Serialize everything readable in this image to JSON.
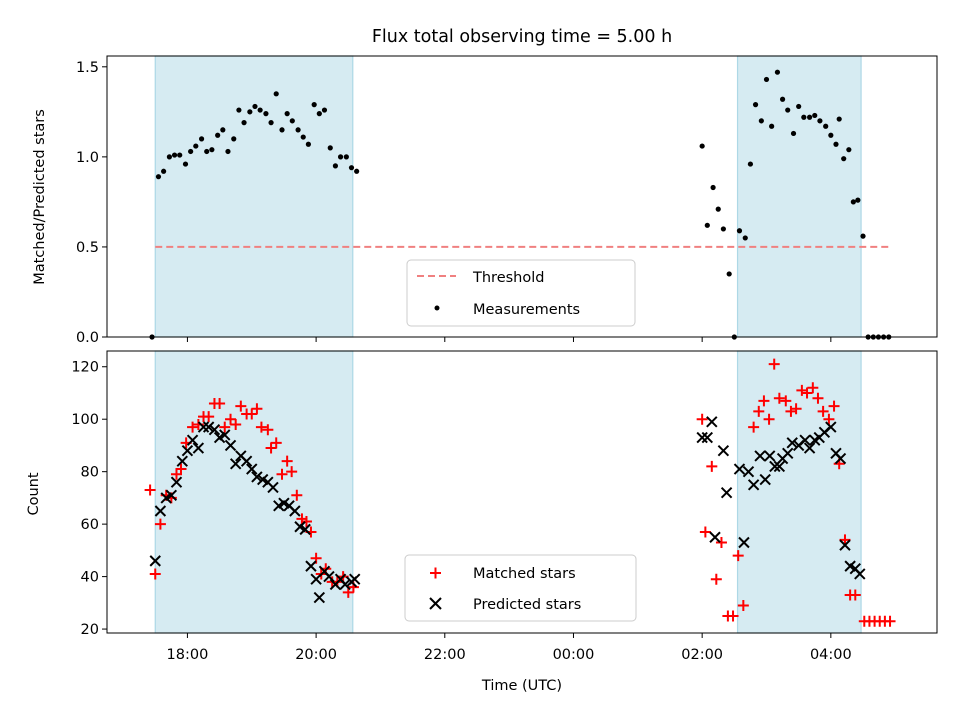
{
  "figure": {
    "title": "Flux total observing time = 5.00 h",
    "xlabel": "Time (UTC)"
  },
  "chart_data": [
    {
      "type": "scatter",
      "panel": "top",
      "ylabel": "Matched/Predicted stars",
      "xlim": [
        16.75,
        29.65
      ],
      "ylim": [
        0.0,
        1.56
      ],
      "y_ticks": [
        "0.0",
        "0.5",
        "1.0",
        "1.5"
      ],
      "y_tick_values": [
        0,
        0.5,
        1.0,
        1.5
      ],
      "x_tick_values": [
        18,
        20,
        22,
        24,
        26,
        28
      ],
      "x_tick_labels_shown": false,
      "legend": [
        "Threshold",
        "Measurements"
      ],
      "legend_position": "lower center",
      "shaded_intervals": [
        [
          17.5,
          20.57
        ],
        [
          26.55,
          28.47
        ]
      ],
      "threshold": {
        "name": "Threshold",
        "value": 0.5,
        "x_range": [
          17.5,
          28.95
        ],
        "color": "#f08080",
        "style": "dashed"
      },
      "series": [
        {
          "name": "Measurements",
          "color": "#000000",
          "marker": "dot",
          "points": [
            [
              17.45,
              0.0
            ],
            [
              17.55,
              0.89
            ],
            [
              17.63,
              0.92
            ],
            [
              17.72,
              1.0
            ],
            [
              17.8,
              1.01
            ],
            [
              17.88,
              1.01
            ],
            [
              17.97,
              0.96
            ],
            [
              18.05,
              1.03
            ],
            [
              18.13,
              1.06
            ],
            [
              18.22,
              1.1
            ],
            [
              18.3,
              1.03
            ],
            [
              18.38,
              1.04
            ],
            [
              18.47,
              1.12
            ],
            [
              18.55,
              1.15
            ],
            [
              18.63,
              1.03
            ],
            [
              18.72,
              1.1
            ],
            [
              18.8,
              1.26
            ],
            [
              18.88,
              1.19
            ],
            [
              18.97,
              1.25
            ],
            [
              19.05,
              1.28
            ],
            [
              19.13,
              1.26
            ],
            [
              19.22,
              1.24
            ],
            [
              19.3,
              1.19
            ],
            [
              19.38,
              1.35
            ],
            [
              19.47,
              1.15
            ],
            [
              19.55,
              1.24
            ],
            [
              19.63,
              1.2
            ],
            [
              19.72,
              1.15
            ],
            [
              19.8,
              1.11
            ],
            [
              19.88,
              1.07
            ],
            [
              19.97,
              1.29
            ],
            [
              20.05,
              1.24
            ],
            [
              20.13,
              1.26
            ],
            [
              20.22,
              1.05
            ],
            [
              20.3,
              0.95
            ],
            [
              20.38,
              1.0
            ],
            [
              20.47,
              1.0
            ],
            [
              20.55,
              0.94
            ],
            [
              20.63,
              0.92
            ],
            [
              26.0,
              1.06
            ],
            [
              26.08,
              0.62
            ],
            [
              26.17,
              0.83
            ],
            [
              26.25,
              0.71
            ],
            [
              26.33,
              0.6
            ],
            [
              26.42,
              0.35
            ],
            [
              26.5,
              0.0
            ],
            [
              26.58,
              0.59
            ],
            [
              26.67,
              0.55
            ],
            [
              26.75,
              0.96
            ],
            [
              26.83,
              1.29
            ],
            [
              26.92,
              1.2
            ],
            [
              27.0,
              1.43
            ],
            [
              27.08,
              1.17
            ],
            [
              27.17,
              1.47
            ],
            [
              27.25,
              1.32
            ],
            [
              27.33,
              1.26
            ],
            [
              27.42,
              1.13
            ],
            [
              27.5,
              1.28
            ],
            [
              27.58,
              1.22
            ],
            [
              27.67,
              1.22
            ],
            [
              27.75,
              1.23
            ],
            [
              27.83,
              1.2
            ],
            [
              27.92,
              1.17
            ],
            [
              28.0,
              1.12
            ],
            [
              28.08,
              1.07
            ],
            [
              28.13,
              1.21
            ],
            [
              28.2,
              0.99
            ],
            [
              28.28,
              1.04
            ],
            [
              28.35,
              0.75
            ],
            [
              28.42,
              0.76
            ],
            [
              28.5,
              0.56
            ],
            [
              28.58,
              0.0
            ],
            [
              28.66,
              0.0
            ],
            [
              28.74,
              0.0
            ],
            [
              28.82,
              0.0
            ],
            [
              28.9,
              0.0
            ]
          ]
        }
      ]
    },
    {
      "type": "scatter",
      "panel": "bottom",
      "xlabel": "Time (UTC)",
      "ylabel": "Count",
      "xlim": [
        16.75,
        29.65
      ],
      "ylim": [
        18.5,
        126
      ],
      "y_ticks": [
        "20",
        "40",
        "60",
        "80",
        "100",
        "120"
      ],
      "y_tick_values": [
        20,
        40,
        60,
        80,
        100,
        120
      ],
      "x_ticks": [
        "18:00",
        "20:00",
        "22:00",
        "00:00",
        "02:00",
        "04:00"
      ],
      "x_tick_values": [
        18,
        20,
        22,
        24,
        26,
        28
      ],
      "legend": [
        "Matched stars",
        "Predicted stars"
      ],
      "legend_position": "lower center",
      "shaded_intervals": [
        [
          17.5,
          20.57
        ],
        [
          26.55,
          28.47
        ]
      ],
      "series": [
        {
          "name": "Matched stars",
          "color": "#ff0000",
          "marker": "plus",
          "points": [
            [
              17.42,
              73
            ],
            [
              17.5,
              41
            ],
            [
              17.58,
              60
            ],
            [
              17.67,
              71
            ],
            [
              17.75,
              70
            ],
            [
              17.83,
              79
            ],
            [
              17.9,
              81
            ],
            [
              17.98,
              91
            ],
            [
              18.08,
              97
            ],
            [
              18.17,
              98
            ],
            [
              18.25,
              101
            ],
            [
              18.33,
              101
            ],
            [
              18.42,
              106
            ],
            [
              18.5,
              106
            ],
            [
              18.58,
              97
            ],
            [
              18.67,
              100
            ],
            [
              18.75,
              98
            ],
            [
              18.83,
              105
            ],
            [
              18.92,
              102
            ],
            [
              19.0,
              102
            ],
            [
              19.08,
              104
            ],
            [
              19.15,
              97
            ],
            [
              19.25,
              96
            ],
            [
              19.3,
              89
            ],
            [
              19.38,
              91
            ],
            [
              19.47,
              79
            ],
            [
              19.55,
              84
            ],
            [
              19.62,
              80
            ],
            [
              19.7,
              71
            ],
            [
              19.78,
              62
            ],
            [
              19.85,
              61
            ],
            [
              19.92,
              57
            ],
            [
              20.0,
              47
            ],
            [
              20.08,
              41
            ],
            [
              20.15,
              43
            ],
            [
              20.25,
              38
            ],
            [
              20.33,
              38
            ],
            [
              20.42,
              40
            ],
            [
              20.5,
              34
            ],
            [
              20.58,
              36
            ],
            [
              26.0,
              100
            ],
            [
              26.05,
              57
            ],
            [
              26.15,
              82
            ],
            [
              26.22,
              39
            ],
            [
              26.3,
              53
            ],
            [
              26.4,
              25
            ],
            [
              26.48,
              25
            ],
            [
              26.56,
              48
            ],
            [
              26.64,
              29
            ],
            [
              26.8,
              97
            ],
            [
              26.88,
              103
            ],
            [
              26.96,
              107
            ],
            [
              27.04,
              100
            ],
            [
              27.12,
              121
            ],
            [
              27.2,
              108
            ],
            [
              27.3,
              107
            ],
            [
              27.38,
              103
            ],
            [
              27.46,
              104
            ],
            [
              27.55,
              111
            ],
            [
              27.63,
              110
            ],
            [
              27.72,
              112
            ],
            [
              27.8,
              108
            ],
            [
              27.88,
              103
            ],
            [
              27.97,
              100
            ],
            [
              28.05,
              105
            ],
            [
              28.13,
              83
            ],
            [
              28.22,
              54
            ],
            [
              28.3,
              33
            ],
            [
              28.38,
              33
            ],
            [
              28.52,
              23
            ],
            [
              28.6,
              23
            ],
            [
              28.68,
              23
            ],
            [
              28.76,
              23
            ],
            [
              28.84,
              23
            ],
            [
              28.92,
              23
            ]
          ]
        },
        {
          "name": "Predicted stars",
          "color": "#000000",
          "marker": "x",
          "points": [
            [
              17.5,
              46
            ],
            [
              17.58,
              65
            ],
            [
              17.67,
              70
            ],
            [
              17.75,
              71
            ],
            [
              17.83,
              76
            ],
            [
              17.92,
              84
            ],
            [
              18.0,
              88
            ],
            [
              18.08,
              92
            ],
            [
              18.17,
              89
            ],
            [
              18.25,
              97
            ],
            [
              18.33,
              97
            ],
            [
              18.42,
              96
            ],
            [
              18.5,
              93
            ],
            [
              18.58,
              94
            ],
            [
              18.67,
              90
            ],
            [
              18.75,
              83
            ],
            [
              18.83,
              86
            ],
            [
              18.92,
              84
            ],
            [
              19.0,
              81
            ],
            [
              19.08,
              78
            ],
            [
              19.17,
              77
            ],
            [
              19.25,
              76
            ],
            [
              19.33,
              74
            ],
            [
              19.42,
              67
            ],
            [
              19.5,
              68
            ],
            [
              19.58,
              67
            ],
            [
              19.67,
              65
            ],
            [
              19.75,
              59
            ],
            [
              19.83,
              58
            ],
            [
              19.92,
              44
            ],
            [
              20.0,
              39
            ],
            [
              20.05,
              32
            ],
            [
              20.13,
              42
            ],
            [
              20.2,
              40
            ],
            [
              20.3,
              37
            ],
            [
              20.38,
              39
            ],
            [
              20.45,
              37
            ],
            [
              20.55,
              38
            ],
            [
              20.6,
              39
            ],
            [
              26.0,
              93
            ],
            [
              26.08,
              93
            ],
            [
              26.15,
              99
            ],
            [
              26.2,
              55
            ],
            [
              26.33,
              88
            ],
            [
              26.38,
              72
            ],
            [
              26.58,
              81
            ],
            [
              26.65,
              53
            ],
            [
              26.72,
              80
            ],
            [
              26.8,
              75
            ],
            [
              26.9,
              86
            ],
            [
              26.98,
              77
            ],
            [
              27.05,
              86
            ],
            [
              27.13,
              82
            ],
            [
              27.2,
              82
            ],
            [
              27.25,
              85
            ],
            [
              27.33,
              87
            ],
            [
              27.4,
              91
            ],
            [
              27.5,
              90
            ],
            [
              27.6,
              92
            ],
            [
              27.67,
              89
            ],
            [
              27.75,
              92
            ],
            [
              27.82,
              93
            ],
            [
              27.9,
              95
            ],
            [
              28.0,
              97
            ],
            [
              28.08,
              87
            ],
            [
              28.15,
              85
            ],
            [
              28.22,
              52
            ],
            [
              28.3,
              44
            ],
            [
              28.38,
              43
            ],
            [
              28.45,
              41
            ]
          ]
        }
      ]
    }
  ]
}
